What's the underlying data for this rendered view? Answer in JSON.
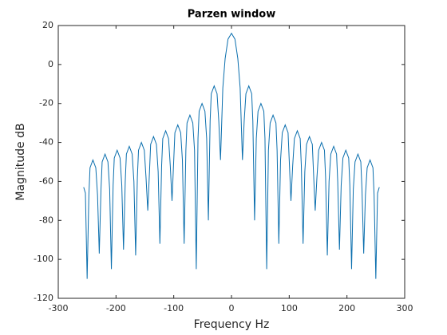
{
  "chart_data": {
    "type": "line",
    "title": "Parzen window",
    "xlabel": "Frequency Hz",
    "ylabel": "Magnitude dB",
    "x": [
      -256,
      -253,
      -250,
      -247,
      -245,
      -240,
      -235,
      -232,
      -229,
      -226,
      -224,
      -219,
      -214,
      -211,
      -208,
      -205,
      -203,
      -198,
      -193,
      -190,
      -187,
      -184,
      -182,
      -177,
      -172,
      -169,
      -166,
      -163,
      -161,
      -156,
      -151,
      -148,
      -145,
      -142,
      -140,
      -135,
      -130,
      -127,
      -124,
      -121,
      -119,
      -114,
      -109,
      -106,
      -103,
      -100,
      -98,
      -93,
      -88,
      -85,
      -82,
      -79,
      -77,
      -72,
      -67,
      -64,
      -61,
      -58,
      -56,
      -51,
      -46,
      -43,
      -40,
      -37,
      -35,
      -30,
      -25,
      -22,
      -19,
      -15,
      -11,
      -6,
      0,
      6,
      11,
      15,
      19,
      22,
      25,
      30,
      35,
      37,
      40,
      43,
      46,
      51,
      56,
      58,
      61,
      64,
      67,
      72,
      77,
      79,
      82,
      85,
      88,
      93,
      98,
      100,
      103,
      106,
      109,
      114,
      119,
      121,
      124,
      127,
      130,
      135,
      140,
      142,
      145,
      148,
      151,
      156,
      161,
      163,
      166,
      169,
      172,
      177,
      182,
      184,
      187,
      190,
      193,
      198,
      203,
      205,
      208,
      211,
      214,
      219,
      224,
      226,
      229,
      232,
      235,
      240,
      245,
      247,
      250,
      253,
      256
    ],
    "series": [
      {
        "name": "Parzen",
        "color": "#0b6fae",
        "values": [
          -63,
          -66,
          -110,
          -67,
          -53,
          -49,
          -53,
          -67,
          -97,
          -64,
          -50,
          -46,
          -50,
          -64,
          -105,
          -62,
          -48,
          -44,
          -48,
          -62,
          -95,
          -60,
          -46,
          -42,
          -46,
          -60,
          -98,
          -58,
          -44,
          -40,
          -44,
          -58,
          -75,
          -55,
          -41,
          -37,
          -41,
          -55,
          -92,
          -52,
          -38,
          -34,
          -38,
          -52,
          -70,
          -49,
          -35,
          -31,
          -35,
          -49,
          -92,
          -44,
          -30,
          -26,
          -30,
          -44,
          -105,
          -38,
          -24,
          -20,
          -24,
          -38,
          -80,
          -29,
          -15,
          -11,
          -15,
          -29,
          -49,
          -12,
          3,
          13,
          16,
          13,
          3,
          -12,
          -49,
          -29,
          -15,
          -11,
          -15,
          -29,
          -80,
          -38,
          -24,
          -20,
          -24,
          -38,
          -105,
          -44,
          -30,
          -26,
          -30,
          -44,
          -92,
          -49,
          -35,
          -31,
          -35,
          -49,
          -70,
          -52,
          -38,
          -34,
          -38,
          -52,
          -92,
          -55,
          -41,
          -37,
          -41,
          -55,
          -75,
          -58,
          -44,
          -40,
          -44,
          -58,
          -98,
          -60,
          -46,
          -42,
          -46,
          -60,
          -95,
          -62,
          -48,
          -44,
          -48,
          -62,
          -105,
          -64,
          -50,
          -46,
          -50,
          -64,
          -97,
          -67,
          -53,
          -49,
          -53,
          -67,
          -110,
          -66,
          -63
        ]
      }
    ],
    "xlim": [
      -300,
      300
    ],
    "xticks": [
      -300,
      -200,
      -100,
      0,
      100,
      200,
      300
    ],
    "ylim": [
      -120,
      20
    ],
    "yticks": [
      -120,
      -100,
      -80,
      -60,
      -40,
      -20,
      0,
      20
    ]
  }
}
